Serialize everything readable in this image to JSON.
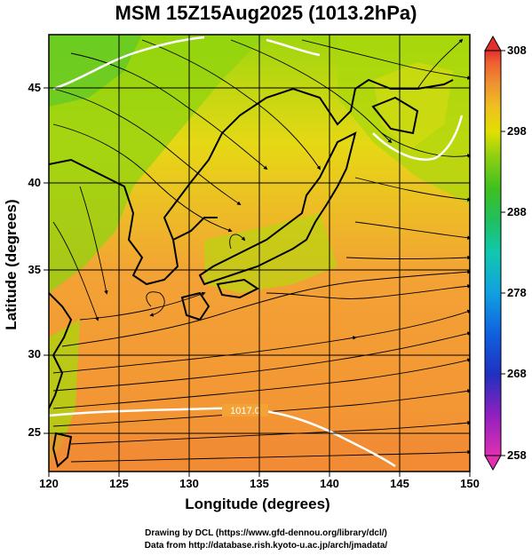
{
  "title": "MSM 15Z15Aug2025 (1013.2hPa)",
  "axes": {
    "xlabel": "Longitude (degrees)",
    "ylabel": "Latitude  (degrees)",
    "x_ticks": [
      "120",
      "125",
      "130",
      "135",
      "140",
      "145",
      "150"
    ],
    "y_ticks": [
      "25",
      "30",
      "35",
      "40",
      "45"
    ],
    "x_range": [
      120,
      150
    ],
    "y_range": [
      22.4,
      47.6
    ],
    "grid": true
  },
  "colorbar": {
    "ticks": [
      "308",
      "298",
      "288",
      "278",
      "268",
      "258"
    ],
    "range": [
      258,
      308
    ],
    "colors": [
      "#e030b0",
      "#9020c0",
      "#2030c0",
      "#1060e0",
      "#10a0e0",
      "#10c8b0",
      "#20c060",
      "#40c020",
      "#90d010",
      "#e0e000",
      "#f0c020",
      "#f09030",
      "#f06030",
      "#e03030"
    ]
  },
  "contour_label": "1017.0",
  "credits": {
    "line1": "Drawing by DCL (https://www.gfd-dennou.org/library/dcl/)",
    "line2": "Data from http://database.rish.kyoto-u.ac.jp/arch/jmadata/"
  }
}
